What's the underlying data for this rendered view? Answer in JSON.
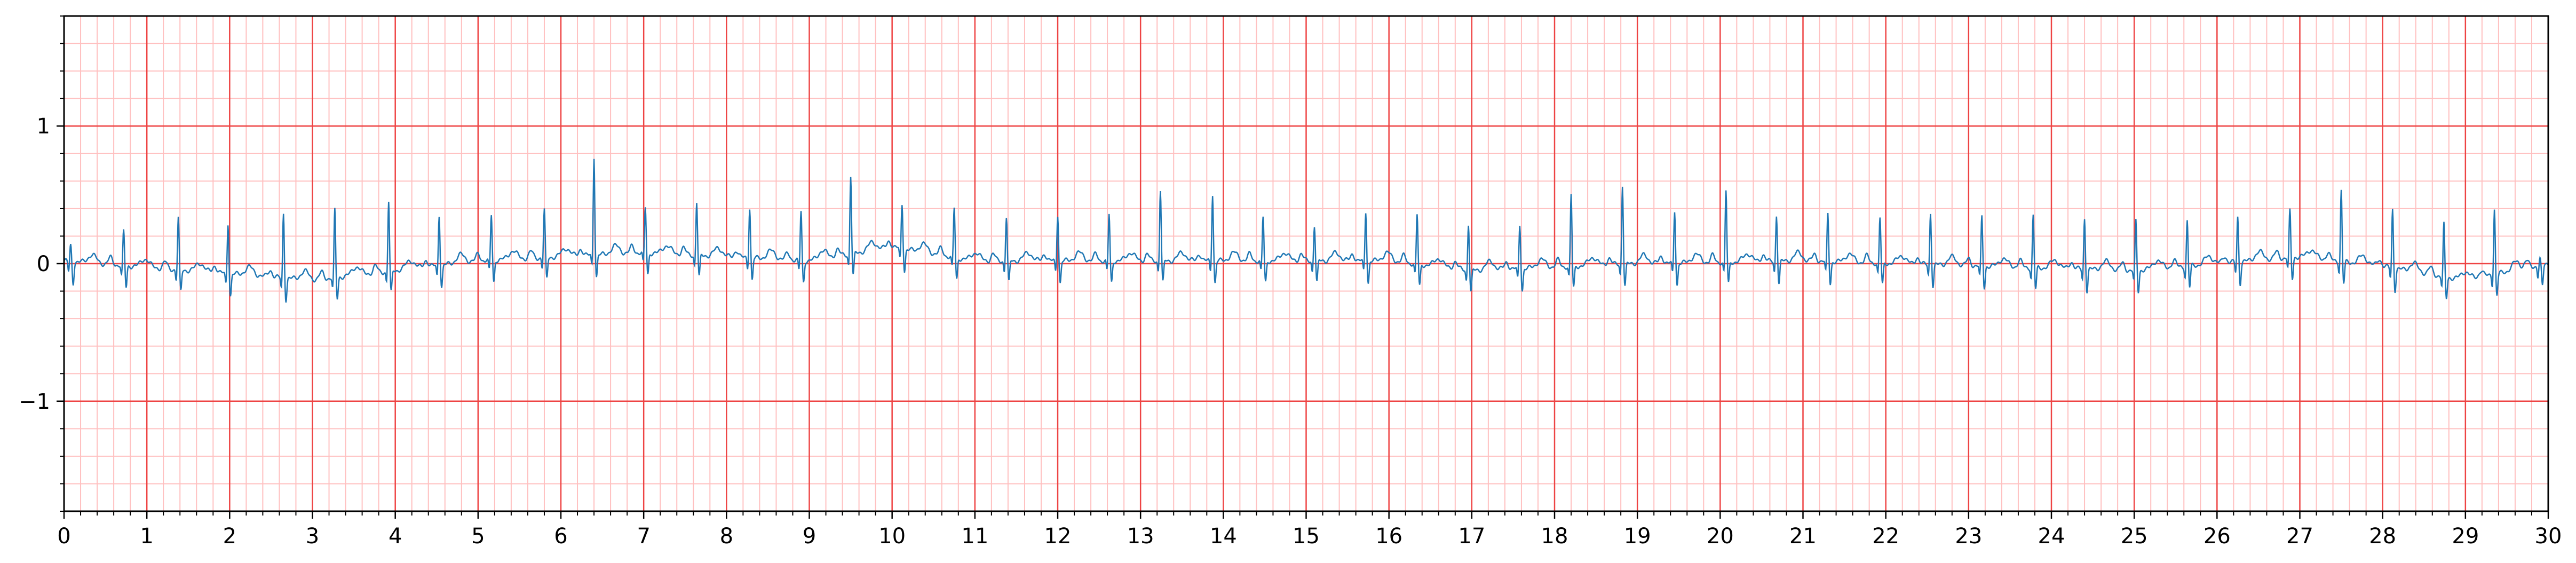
{
  "chart_data": {
    "type": "line",
    "title": "",
    "xlabel": "",
    "ylabel": "",
    "xlim": [
      0,
      30
    ],
    "ylim": [
      -1.8,
      1.8
    ],
    "x_ticks": [
      "0",
      "1",
      "2",
      "3",
      "4",
      "5",
      "6",
      "7",
      "8",
      "9",
      "10",
      "11",
      "12",
      "13",
      "14",
      "15",
      "16",
      "17",
      "18",
      "19",
      "20",
      "21",
      "22",
      "23",
      "24",
      "25",
      "26",
      "27",
      "28",
      "29",
      "30"
    ],
    "y_ticks": [
      {
        "value": 1,
        "label": "1"
      },
      {
        "value": 0,
        "label": "0"
      },
      {
        "value": -1,
        "label": "−1"
      }
    ],
    "x_major_step": 1,
    "x_minor_step": 0.2,
    "y_major_step": 1,
    "y_minor_step": 0.2,
    "grid": true,
    "colors": {
      "line": "#1f77b4",
      "major_grid": "#ee4444",
      "minor_grid": "#ffc0c0",
      "axes": "#000000",
      "background": "#ffffff"
    },
    "series": [
      {
        "beat_times": [
          0.08,
          0.72,
          1.38,
          1.98,
          2.65,
          3.27,
          3.92,
          4.53,
          5.16,
          5.8,
          6.4,
          7.02,
          7.64,
          8.28,
          8.9,
          9.5,
          10.12,
          10.75,
          11.38,
          12.0,
          12.62,
          13.24,
          13.87,
          14.48,
          15.1,
          15.72,
          16.34,
          16.96,
          17.58,
          18.2,
          18.82,
          19.45,
          20.07,
          20.68,
          21.3,
          21.93,
          22.54,
          23.16,
          23.78,
          24.4,
          25.02,
          25.64,
          26.25,
          26.88,
          27.5,
          28.12,
          28.74,
          29.35,
          29.9
        ],
        "r_peaks": [
          0.12,
          0.25,
          0.38,
          0.37,
          0.47,
          0.49,
          0.51,
          0.37,
          0.33,
          0.35,
          0.72,
          0.33,
          0.39,
          0.37,
          0.36,
          0.57,
          0.33,
          0.36,
          0.32,
          0.34,
          0.34,
          0.52,
          0.49,
          0.32,
          0.26,
          0.36,
          0.36,
          0.34,
          0.32,
          0.52,
          0.58,
          0.38,
          0.52,
          0.34,
          0.35,
          0.33,
          0.38,
          0.36,
          0.38,
          0.37,
          0.36,
          0.33,
          0.33,
          0.34,
          0.52,
          0.43,
          0.38,
          0.48,
          0.05
        ],
        "baseline": [
          [
            0,
            0.02
          ],
          [
            3,
            -0.12
          ],
          [
            5,
            0.02
          ],
          [
            7,
            0.08
          ],
          [
            9,
            0.02
          ],
          [
            10,
            0.12
          ],
          [
            11,
            0.02
          ],
          [
            16,
            0.02
          ],
          [
            17,
            -0.05
          ],
          [
            19,
            0.0
          ],
          [
            21,
            0.02
          ],
          [
            25,
            -0.05
          ],
          [
            26,
            0.0
          ],
          [
            27,
            0.05
          ],
          [
            28,
            -0.02
          ],
          [
            29,
            -0.12
          ],
          [
            30,
            0.0
          ]
        ]
      }
    ]
  }
}
